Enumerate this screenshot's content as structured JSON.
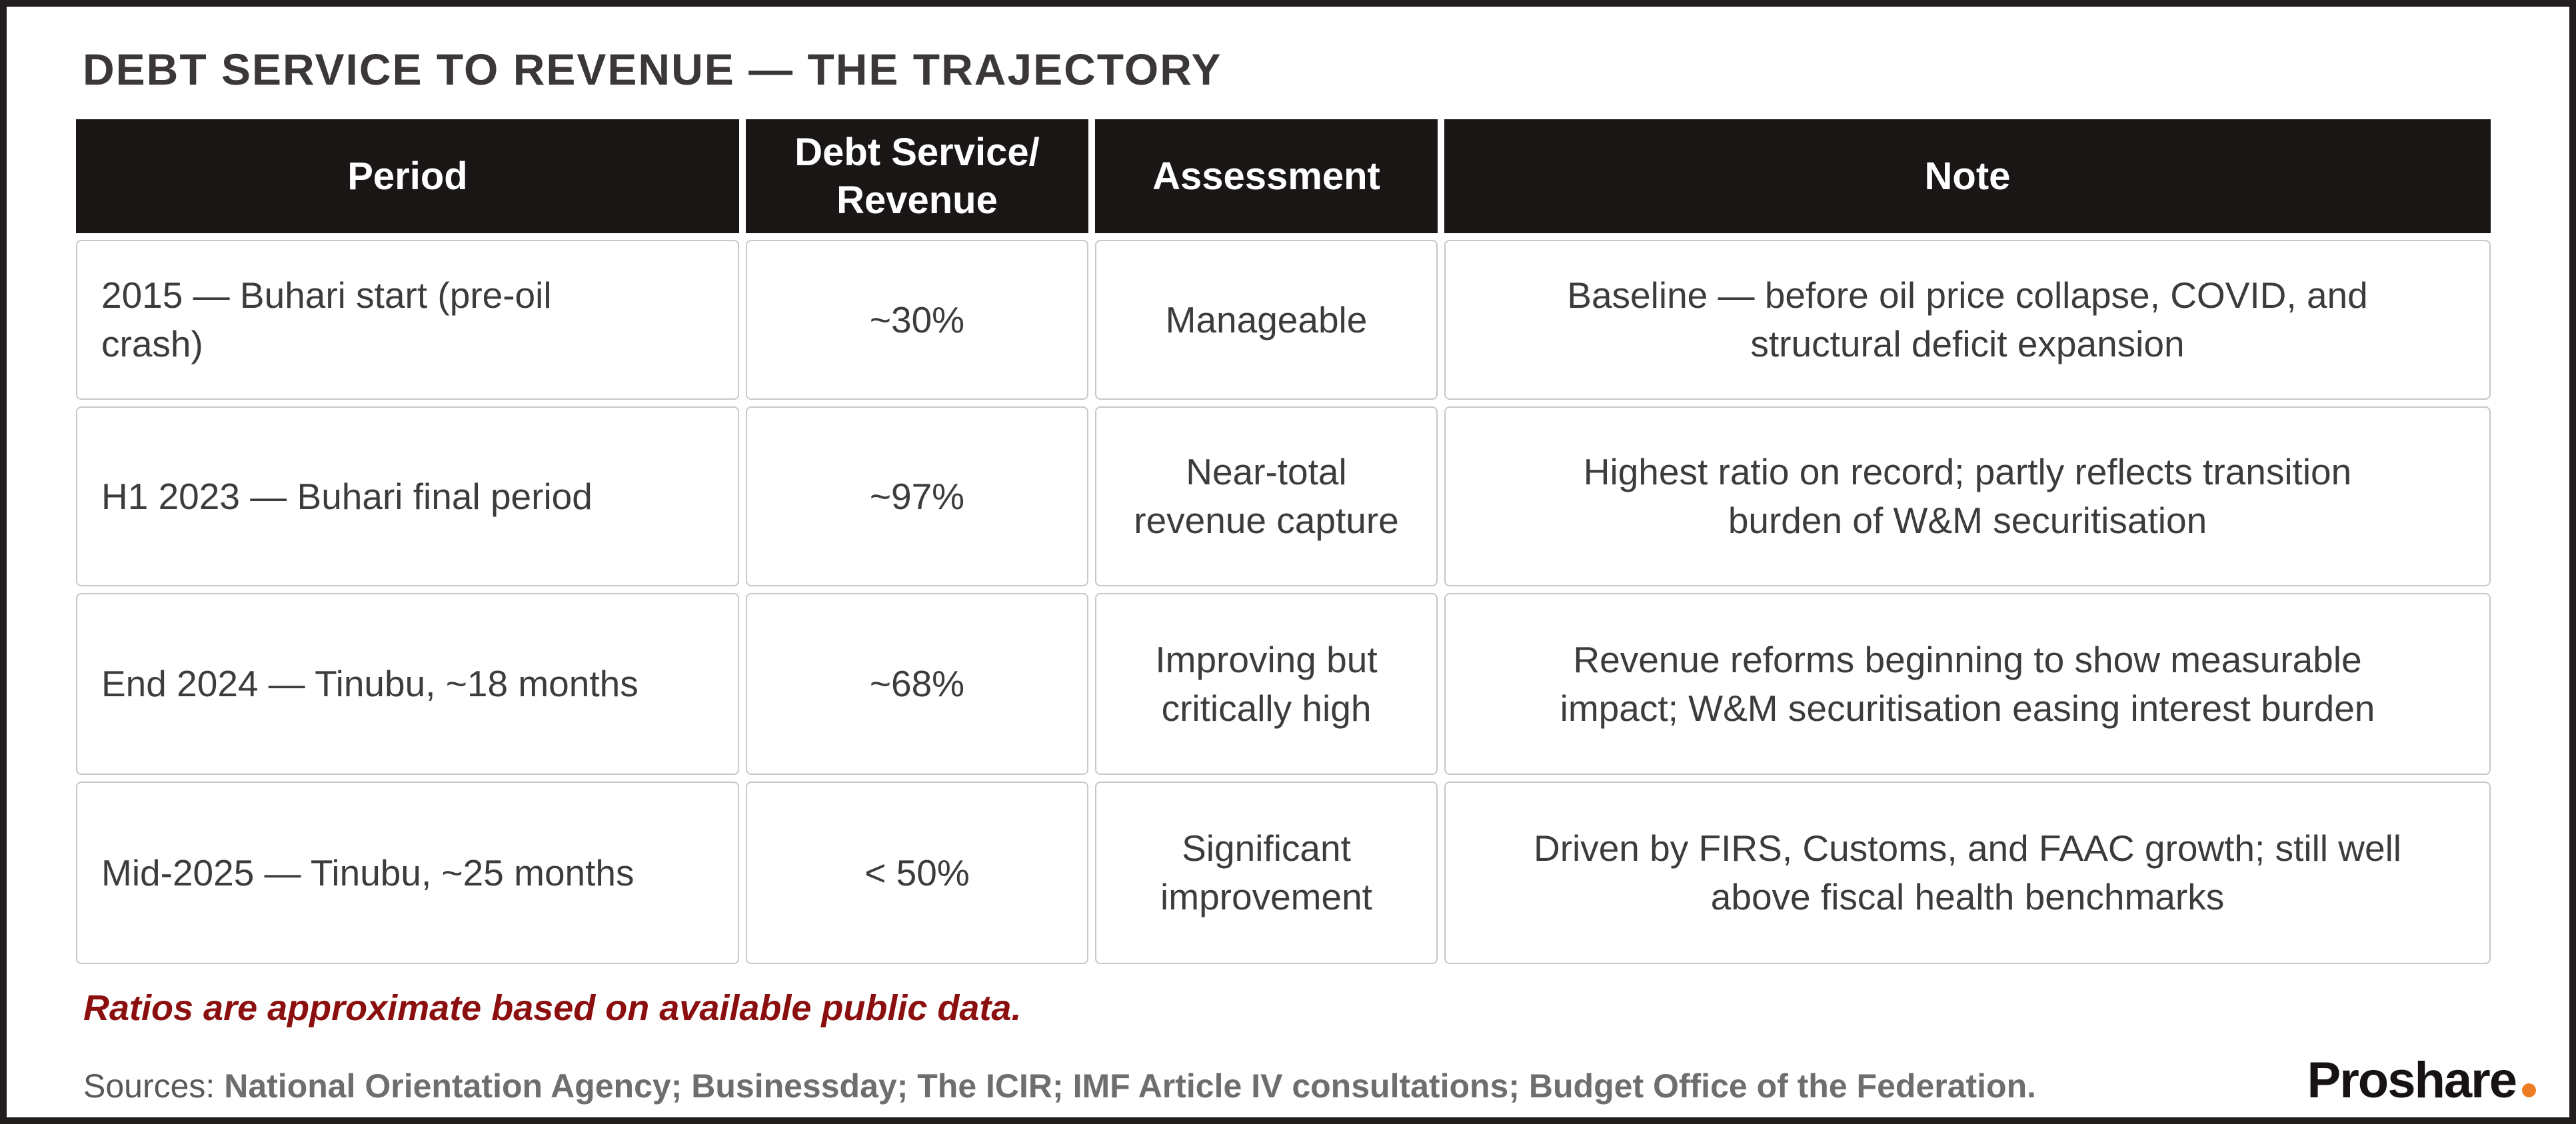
{
  "colors": {
    "frame_border": "#221E1E",
    "header_bg": "#1B1616",
    "header_text": "#FFFFFF",
    "title_text": "#3B3737",
    "body_text": "#3D3C3C",
    "cell_border": "#C9C7C7",
    "footnote_red": "#8C0F0F",
    "sources_gray": "#6E6E71",
    "logo_black": "#171313",
    "logo_orange": "#ED7D23"
  },
  "title": "DEBT SERVICE TO REVENUE — THE TRAJECTORY",
  "table": {
    "headers": {
      "period": "Period",
      "ratio": "Debt Service/\nRevenue",
      "assessment": "Assessment",
      "note": "Note"
    },
    "rows": [
      {
        "period": "2015 — Buhari start (pre-oil\ncrash)",
        "ratio": "~30%",
        "assessment": "Manageable",
        "note": "Baseline — before oil price collapse, COVID, and\nstructural deficit expansion"
      },
      {
        "period": "H1 2023 — Buhari final period",
        "ratio": "~97%",
        "assessment": "Near-total\nrevenue capture",
        "note": "Highest ratio on record; partly reflects transition\nburden of W&M securitisation"
      },
      {
        "period": "End 2024 — Tinubu, ~18 months",
        "ratio": "~68%",
        "assessment": "Improving but\ncritically high",
        "note": "Revenue reforms beginning to show measurable\nimpact; W&M securitisation easing interest burden"
      },
      {
        "period": "Mid-2025 — Tinubu, ~25 months",
        "ratio": "< 50%",
        "assessment": "Significant\nimprovement",
        "note": "Driven by FIRS, Customs, and FAAC growth; still well\nabove fiscal health benchmarks"
      }
    ]
  },
  "footnote": "Ratios are approximate based on available public data.",
  "sources": {
    "prefix": "Sources:",
    "text": "National Orientation Agency; Businessday; The ICIR; IMF Article IV consultations; Budget Office of the Federation."
  },
  "logo": {
    "text": "Proshare"
  },
  "chart_data": {
    "type": "table",
    "title": "DEBT SERVICE TO REVENUE — THE TRAJECTORY",
    "columns": [
      "Period",
      "Debt Service/Revenue",
      "Assessment",
      "Note"
    ],
    "rows": [
      [
        "2015 — Buhari start (pre-oil crash)",
        "~30%",
        "Manageable",
        "Baseline — before oil price collapse, COVID, and structural deficit expansion"
      ],
      [
        "H1 2023 — Buhari final period",
        "~97%",
        "Near-total revenue capture",
        "Highest ratio on record; partly reflects transition burden of W&M securitisation"
      ],
      [
        "End 2024 — Tinubu, ~18 months",
        "~68%",
        "Improving but critically high",
        "Revenue reforms beginning to show measurable impact; W&M securitisation easing interest burden"
      ],
      [
        "Mid-2025 — Tinubu, ~25 months",
        "< 50%",
        "Significant improvement",
        "Driven by FIRS, Customs, and FAAC growth; still well above fiscal health benchmarks"
      ]
    ],
    "footnote": "Ratios are approximate based on available public data.",
    "sources": "National Orientation Agency; Businessday; The ICIR; IMF Article IV consultations; Budget Office of the Federation.",
    "grid": false,
    "legend_position": "none"
  }
}
